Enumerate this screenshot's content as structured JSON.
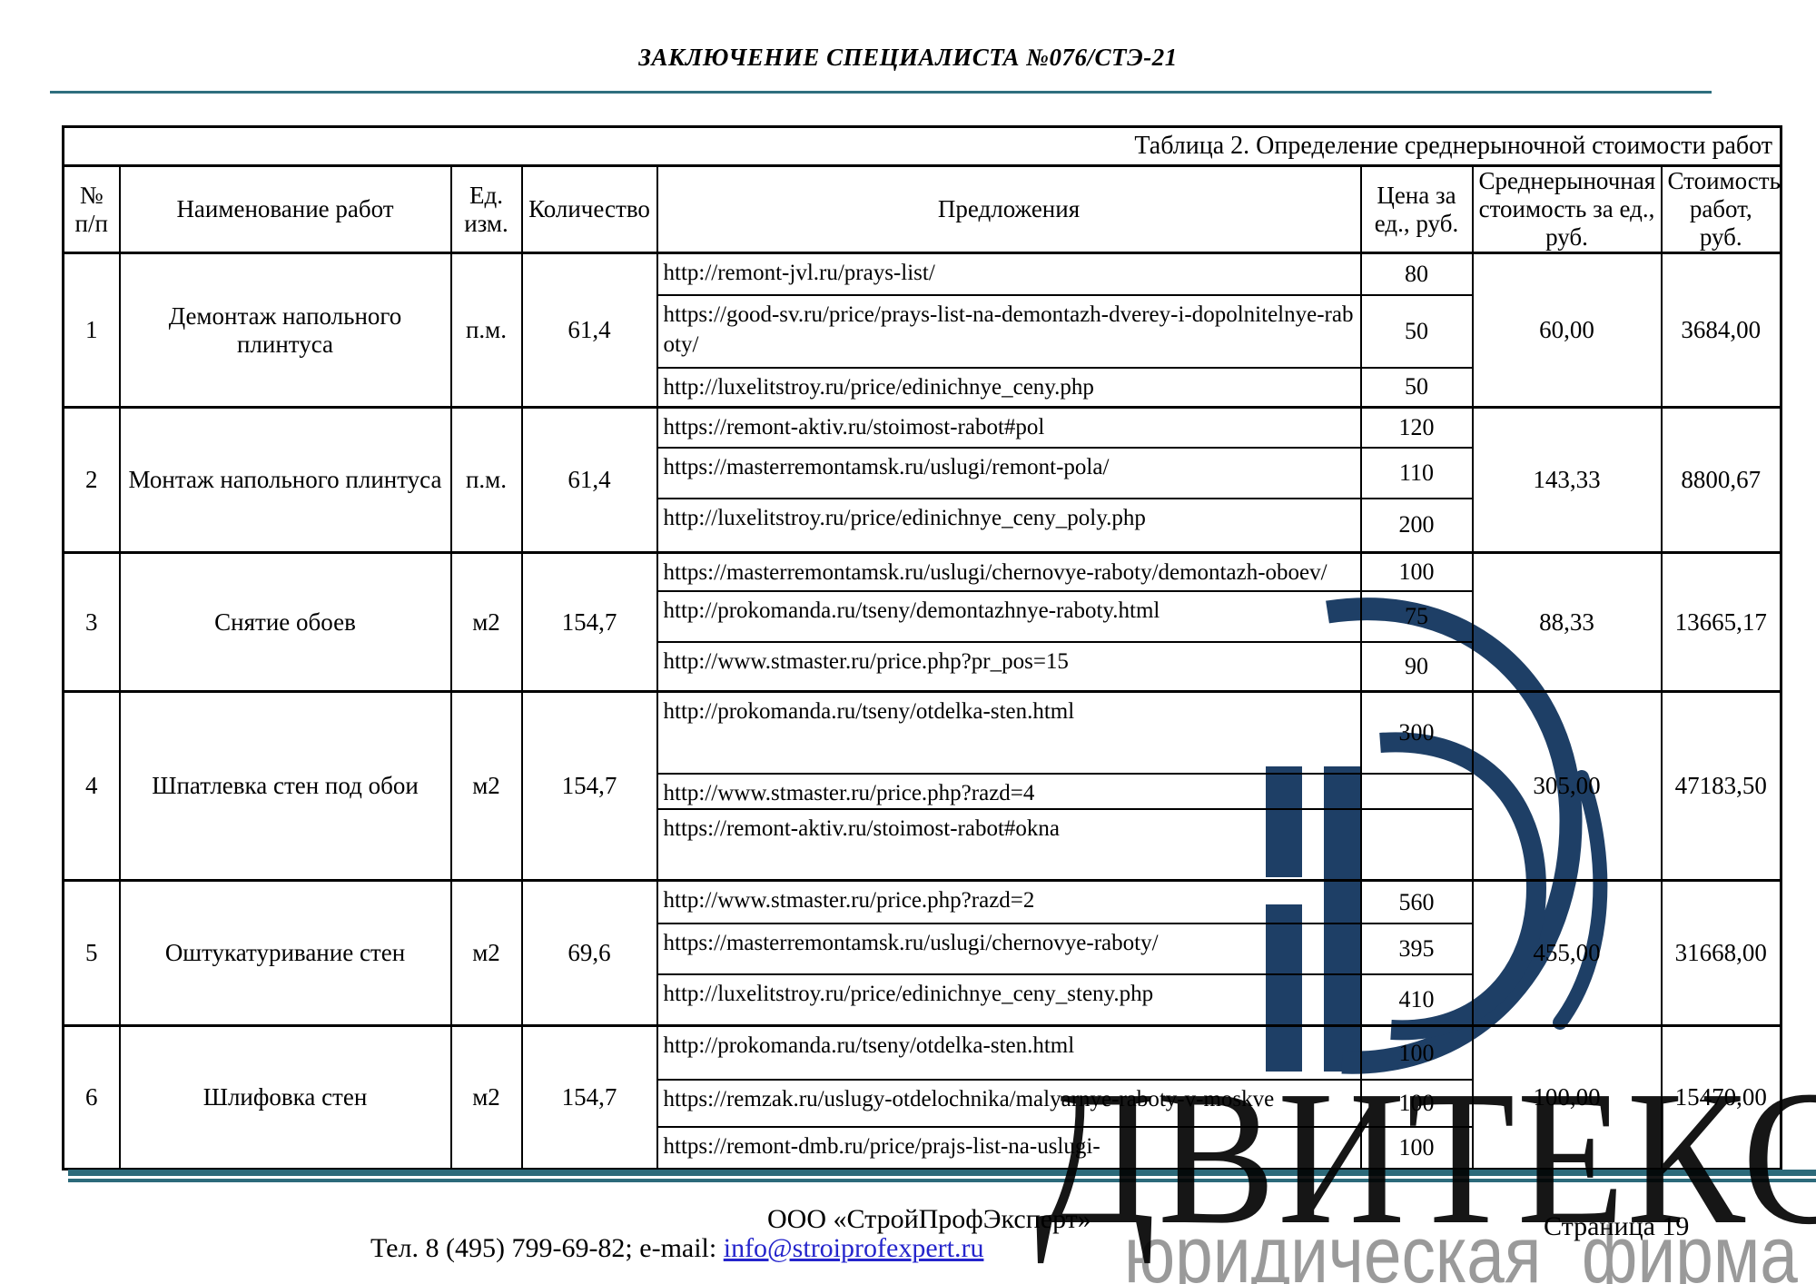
{
  "header": {
    "title": "ЗАКЛЮЧЕНИЕ СПЕЦИАЛИСТА №076/СТЭ-21"
  },
  "table": {
    "caption": "Таблица 2. Определение среднерыночной стоимости работ",
    "columns": [
      "№ п/п",
      "Наименование работ",
      "Ед. изм.",
      "Количество",
      "Предложения",
      "Цена за ед., руб.",
      "Среднерыночная стоимость за ед., руб.",
      "Стоимость работ, руб."
    ],
    "rows": [
      {
        "num": "1",
        "name": "Демонтаж напольного плинтуса",
        "unit": "п.м.",
        "qty": "61,4",
        "offers": [
          {
            "url": "http://remont-jvl.ru/prays-list/",
            "price": "80"
          },
          {
            "url": "https://good-sv.ru/price/prays-list-na-demontazh-dverey-i-dopolnitelnye-raboty/",
            "price": "50"
          },
          {
            "url": "http://luxelitstroy.ru/price/edinichnye_ceny.php",
            "price": "50"
          }
        ],
        "avg": "60,00",
        "total": "3684,00"
      },
      {
        "num": "2",
        "name": "Монтаж напольного плинтуса",
        "unit": "п.м.",
        "qty": "61,4",
        "offers": [
          {
            "url": "https://remont-aktiv.ru/stoimost-rabot#pol",
            "price": "120"
          },
          {
            "url": "https://masterremontamsk.ru/uslugi/remont-pola/",
            "price": "110"
          },
          {
            "url": "http://luxelitstroy.ru/price/edinichnye_ceny_poly.php",
            "price": "200"
          }
        ],
        "avg": "143,33",
        "total": "8800,67"
      },
      {
        "num": "3",
        "name": "Снятие обоев",
        "unit": "м2",
        "qty": "154,7",
        "offers": [
          {
            "url": "https://masterremontamsk.ru/uslugi/chernovye-raboty/demontazh-oboev/",
            "price": "100"
          },
          {
            "url": "http://prokomanda.ru/tseny/demontazhnye-raboty.html",
            "price": "75"
          },
          {
            "url": "http://www.stmaster.ru/price.php?pr_pos=15",
            "price": "90"
          }
        ],
        "avg": "88,33",
        "total": "13665,17"
      },
      {
        "num": "4",
        "name": "Шпатлевка стен под обои",
        "unit": "м2",
        "qty": "154,7",
        "offers": [
          {
            "url": "http://prokomanda.ru/tseny/otdelka-sten.html",
            "price": "300"
          },
          {
            "url": "http://www.stmaster.ru/price.php?razd=4",
            "price": ""
          },
          {
            "url": "https://remont-aktiv.ru/stoimost-rabot#okna",
            "price": ""
          }
        ],
        "avg": "305,00",
        "total": "47183,50"
      },
      {
        "num": "5",
        "name": "Оштукатуривание стен",
        "unit": "м2",
        "qty": "69,6",
        "offers": [
          {
            "url": "http://www.stmaster.ru/price.php?razd=2",
            "price": "560"
          },
          {
            "url": "https://masterremontamsk.ru/uslugi/chernovye-raboty/",
            "price": "395"
          },
          {
            "url": "http://luxelitstroy.ru/price/edinichnye_ceny_steny.php",
            "price": "410"
          }
        ],
        "avg": "455,00",
        "total": "31668,00"
      },
      {
        "num": "6",
        "name": "Шлифовка стен",
        "unit": "м2",
        "qty": "154,7",
        "offers": [
          {
            "url": "http://prokomanda.ru/tseny/otdelka-sten.html",
            "price": "100"
          },
          {
            "url": "https://remzak.ru/uslugy-otdelochnika/malyarnye-raboty-v-moskve",
            "price": "100"
          },
          {
            "url": "https://remont-dmb.ru/price/prajs-list-na-uslugi-",
            "price": "100"
          }
        ],
        "avg": "100,00",
        "total": "15470,00"
      }
    ]
  },
  "footer": {
    "company": "ООО «СтройПрофЭксперт»",
    "contacts_prefix": "Тел. 8 (495) 799-69-82; e-mail: ",
    "email": "info@stroiprofexpert.ru",
    "page": "Страница 19"
  },
  "watermark": {
    "brand": "ДВИТЕКС",
    "tagline": "юридическая  фирма",
    "logo_color": "#1e3f66"
  },
  "colors": {
    "teal_rule": "#2e6e7e",
    "link_blue": "#2525cc"
  }
}
